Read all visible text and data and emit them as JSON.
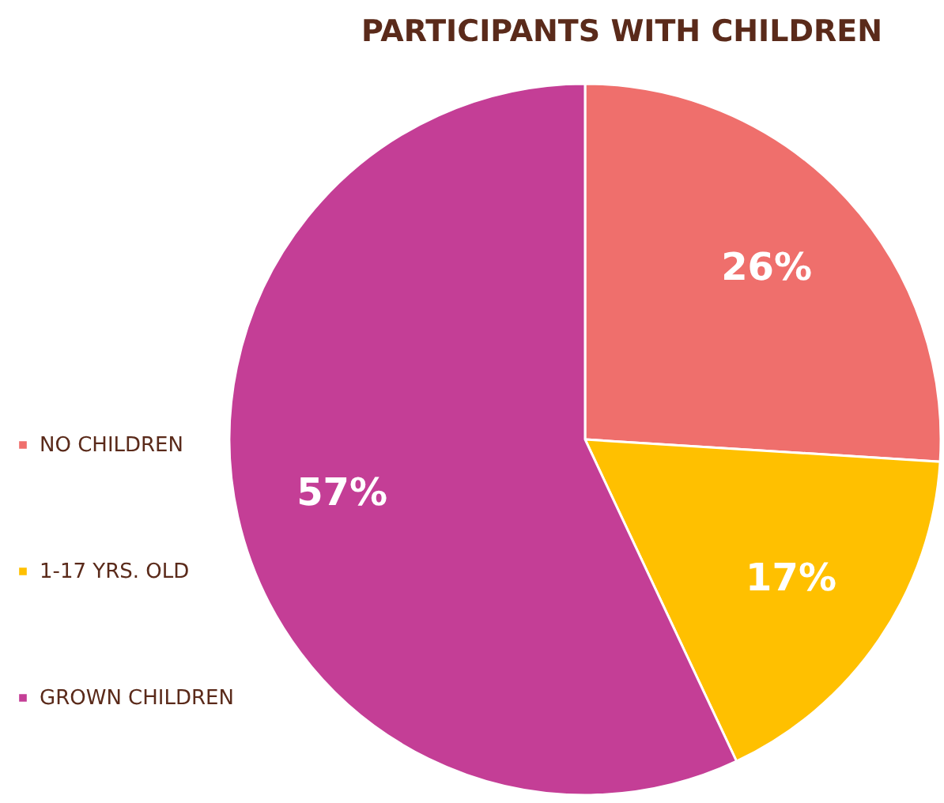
{
  "chart_data": {
    "type": "pie",
    "title": "PARTICIPANTS WITH CHILDREN",
    "categories": [
      "NO CHILDREN",
      "1-17 YRS. OLD",
      "GROWN CHILDREN"
    ],
    "values": [
      26,
      17,
      57
    ],
    "colors": [
      "#ef6f6c",
      "#ffc000",
      "#c43e96"
    ],
    "value_labels": [
      "26%",
      "17%",
      "57%"
    ],
    "legend": "left"
  }
}
